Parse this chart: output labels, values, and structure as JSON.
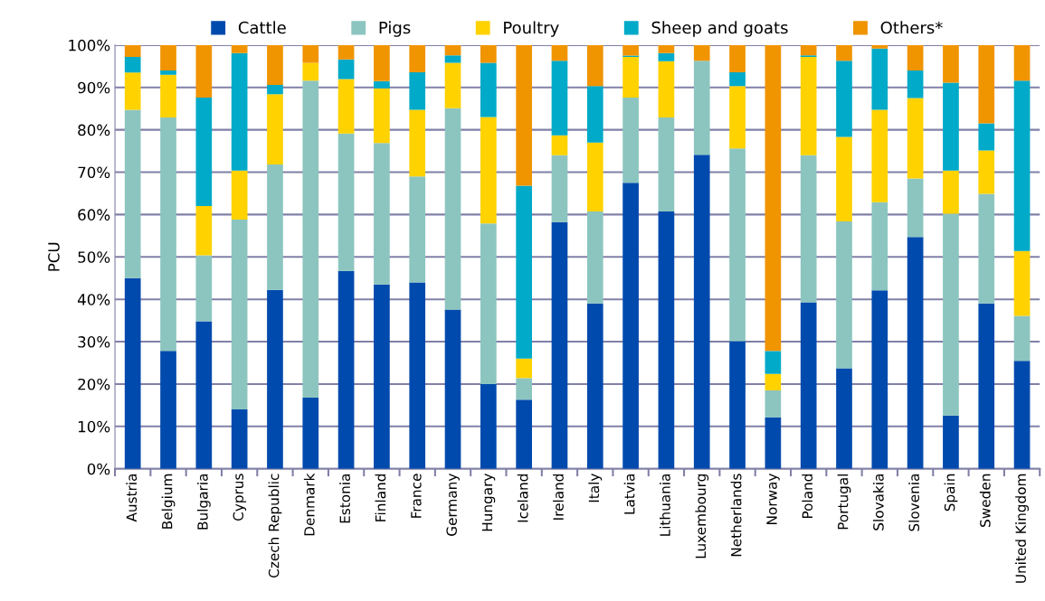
{
  "chart_data": {
    "type": "bar",
    "stacked": true,
    "ylabel": "PCU",
    "categories": [
      "Austria",
      "Belgium",
      "Bulgaria",
      "Cyprus",
      "Czech Republic",
      "Denmark",
      "Estonia",
      "Finland",
      "France",
      "Germany",
      "Hungary",
      "Iceland",
      "Ireland",
      "Italy",
      "Latvia",
      "Lithuania",
      "Luxembourg",
      "Netherlands",
      "Norway",
      "Poland",
      "Portugal",
      "Slovakia",
      "Slovenia",
      "Spain",
      "Sweden",
      "United Kingdom"
    ],
    "series": [
      {
        "name": "Cattle",
        "color": "#004aad",
        "values": [
          45,
          27.8,
          34.8,
          14,
          42.2,
          16.8,
          46.7,
          43.5,
          44,
          37.6,
          20,
          16.3,
          58.2,
          39,
          67.5,
          60.7,
          74.1,
          30.1,
          12.1,
          39.3,
          23.7,
          42.1,
          54.7,
          12.6,
          39,
          25.5
        ]
      },
      {
        "name": "Pigs",
        "color": "#8cc5bf",
        "values": [
          39.7,
          55.1,
          15.6,
          44.8,
          29.6,
          74.8,
          32.4,
          33.4,
          25,
          47.5,
          37.9,
          5.1,
          15.8,
          21.7,
          20.1,
          22.2,
          22.2,
          45.5,
          6.4,
          34.7,
          34.7,
          20.8,
          13.8,
          47.6,
          25.9,
          10.6
        ]
      },
      {
        "name": "Poultry",
        "color": "#ffd200",
        "values": [
          8.8,
          10.1,
          11.6,
          11.6,
          16.6,
          4.2,
          12.9,
          12.9,
          15.7,
          10.7,
          25.1,
          4.6,
          4.7,
          16.3,
          9.6,
          13.3,
          0,
          14.7,
          3.9,
          23.2,
          19.9,
          21.8,
          19,
          10.2,
          10.2,
          15.3
        ]
      },
      {
        "name": "Sheep and goats",
        "color": "#00aac8",
        "values": [
          3.7,
          1,
          25.6,
          27.7,
          2.2,
          0,
          4.6,
          1.7,
          8.9,
          1.8,
          12.8,
          40.8,
          17.6,
          13.3,
          0.3,
          1.9,
          0,
          3.3,
          5.4,
          0.4,
          18,
          14.5,
          6.5,
          20.7,
          6.4,
          40.2
        ]
      },
      {
        "name": "Others*",
        "color": "#f09400",
        "values": [
          2.8,
          6,
          12.4,
          1.9,
          9.4,
          4.2,
          3.4,
          8.5,
          6.4,
          2.4,
          4.2,
          33.2,
          3.7,
          9.7,
          2.5,
          1.9,
          3.7,
          6.4,
          72.2,
          2.4,
          3.7,
          0.8,
          6,
          8.9,
          18.5,
          8.4
        ]
      }
    ],
    "ylim": [
      0,
      100
    ],
    "yticks": [
      {
        "value": 0,
        "label": "0%"
      },
      {
        "value": 10,
        "label": "10%"
      },
      {
        "value": 20,
        "label": "20%"
      },
      {
        "value": 30,
        "label": "30%"
      },
      {
        "value": 40,
        "label": "40%"
      },
      {
        "value": 50,
        "label": "50%"
      },
      {
        "value": 60,
        "label": "60%"
      },
      {
        "value": 70,
        "label": "70%"
      },
      {
        "value": 80,
        "label": "80%"
      },
      {
        "value": 90,
        "label": "90%"
      },
      {
        "value": 100,
        "label": "100%"
      }
    ],
    "grid": "y",
    "legend": "top"
  }
}
